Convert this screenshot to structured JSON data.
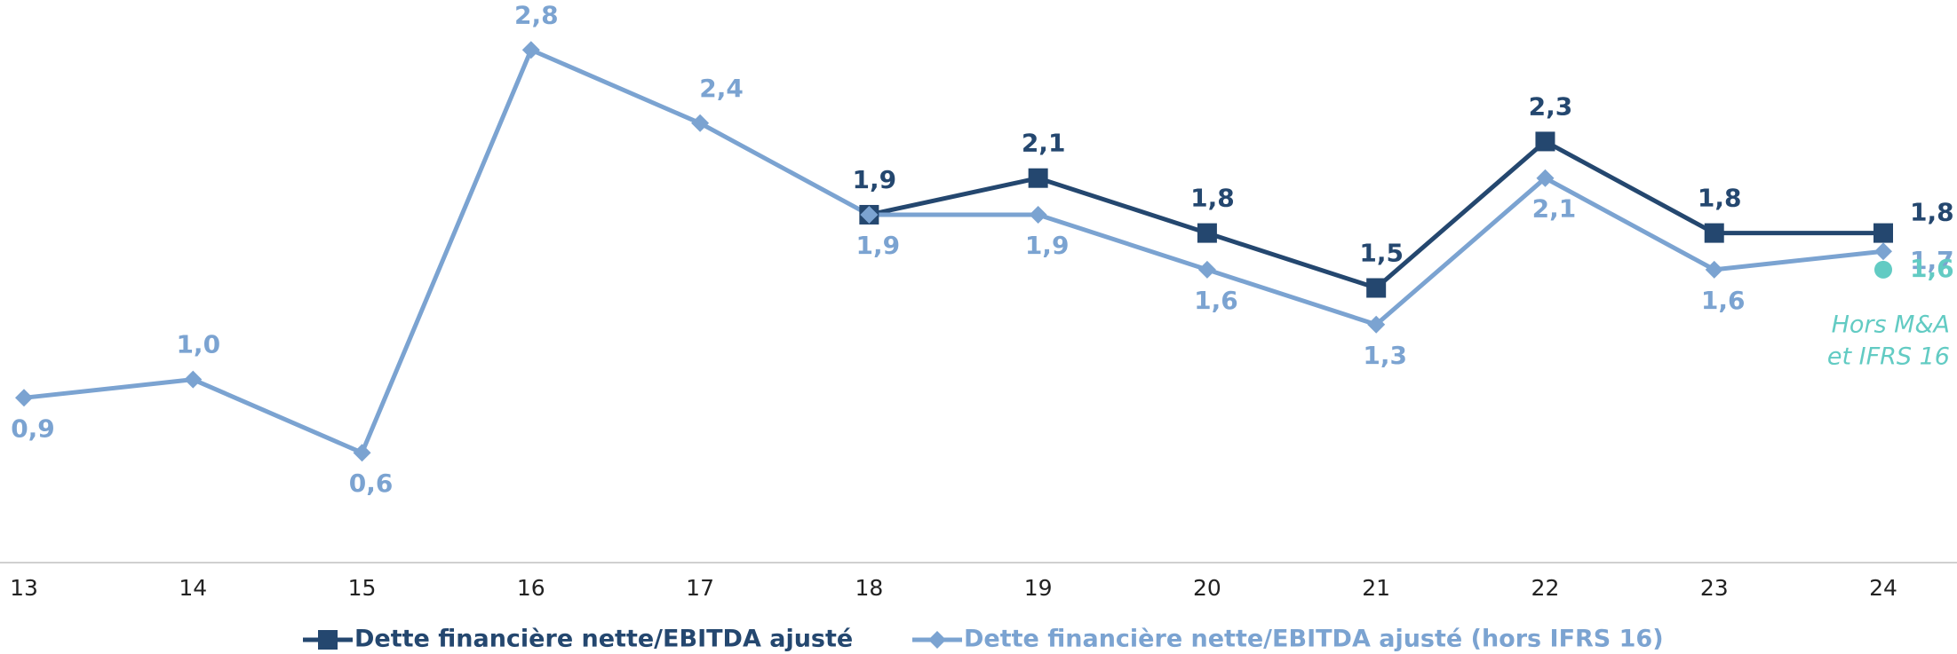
{
  "chart_data": {
    "type": "line",
    "categories": [
      "13",
      "14",
      "15",
      "16",
      "17",
      "18",
      "19",
      "20",
      "21",
      "22",
      "23",
      "24"
    ],
    "series": [
      {
        "name": "Dette financière nette/EBITDA ajusté",
        "color": "#24476f",
        "marker": "square",
        "values": [
          null,
          null,
          null,
          null,
          null,
          1.9,
          2.1,
          1.8,
          1.5,
          2.3,
          1.8,
          1.8
        ],
        "value_labels": [
          null,
          null,
          null,
          null,
          null,
          "1,9",
          "2,1",
          "1,8",
          "1,5",
          "2,3",
          "1,8",
          "1,8"
        ]
      },
      {
        "name": "Dette financière nette/EBITDA ajusté (hors IFRS 16)",
        "color": "#7ba3d1",
        "marker": "diamond",
        "values": [
          0.9,
          1.0,
          0.6,
          2.8,
          2.4,
          1.9,
          1.9,
          1.6,
          1.3,
          2.1,
          1.6,
          1.7
        ],
        "value_labels": [
          "0,9",
          "1,0",
          "0,6",
          "2,8",
          "2,4",
          "1,9",
          "1,9",
          "1,6",
          "1,3",
          "2,1",
          "1,6",
          "1,7"
        ]
      }
    ],
    "annotations": [
      {
        "category": "24",
        "value": 1.6,
        "value_label": "1,6",
        "text_lines": [
          "Hors M&A",
          "et IFRS 16"
        ],
        "color": "#62cbc3"
      }
    ],
    "ylim": [
      0,
      3
    ],
    "legend": "bottom"
  }
}
